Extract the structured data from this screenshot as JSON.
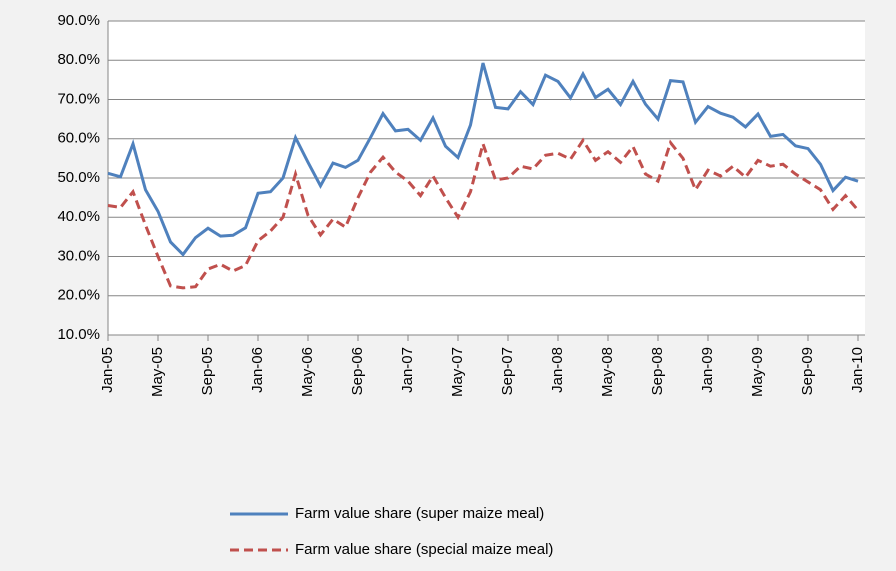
{
  "chart_data": {
    "type": "line",
    "categories": [
      "Jan-05",
      null,
      null,
      null,
      "May-05",
      null,
      null,
      null,
      "Sep-05",
      null,
      null,
      null,
      "Jan-06",
      null,
      null,
      null,
      "May-06",
      null,
      null,
      null,
      "Sep-06",
      null,
      null,
      null,
      "Jan-07",
      null,
      null,
      null,
      "May-07",
      null,
      null,
      null,
      "Sep-07",
      null,
      null,
      null,
      "Jan-08",
      null,
      null,
      null,
      "May-08",
      null,
      null,
      null,
      "Sep-08",
      null,
      null,
      null,
      "Jan-09",
      null,
      null,
      null,
      "May-09",
      null,
      null,
      null,
      "Sep-09",
      null,
      null,
      null,
      "Jan-10"
    ],
    "series": [
      {
        "name": "Farm value share (super maize meal)",
        "color": "#4f81bd",
        "line_style": "solid",
        "values": [
          51.2,
          50.3,
          58.7,
          47,
          41.5,
          33.7,
          30.5,
          34.8,
          37.2,
          35.2,
          35.4,
          37.3,
          46.1,
          46.5,
          50,
          60.3,
          54,
          48,
          53.8,
          52.7,
          54.5,
          60.3,
          66.4,
          62,
          62.4,
          59.6,
          65.3,
          58.1,
          55.2,
          63.5,
          79.3,
          68,
          67.6,
          72,
          68.7,
          76.2,
          74.6,
          70.4,
          76.5,
          70.5,
          72.6,
          68.7,
          74.6,
          68.8,
          65,
          74.8,
          74.5,
          64.2,
          68.2,
          66.5,
          65.5,
          63,
          66.3,
          60.6,
          61.1,
          58.2,
          57.5,
          53.5,
          46.8,
          50.2,
          49.2
        ]
      },
      {
        "name": "Farm value share (special maize meal)",
        "color": "#c0504d",
        "line_style": "dashed",
        "values": [
          43,
          42.5,
          46.5,
          38,
          30,
          22.5,
          22,
          22.3,
          26.8,
          28,
          26.3,
          27.7,
          34,
          36.5,
          40,
          51,
          40.5,
          35.5,
          39.5,
          37.5,
          45,
          51.5,
          55.3,
          51.5,
          49.2,
          45.5,
          50.5,
          45,
          40,
          46.5,
          58.7,
          49.5,
          50,
          53,
          52.3,
          55.8,
          56.3,
          54.8,
          59.6,
          54.5,
          56.7,
          54,
          58,
          51,
          49.2,
          59,
          55,
          47,
          52,
          50.5,
          53,
          50.2,
          54.5,
          53,
          53.5,
          51,
          49,
          47,
          42,
          45.5,
          41.8
        ]
      }
    ],
    "ylim": [
      10,
      90
    ],
    "yticks": [
      {
        "value": 10,
        "label": "10.0%"
      },
      {
        "value": 20,
        "label": "20.0%"
      },
      {
        "value": 30,
        "label": "30.0%"
      },
      {
        "value": 40,
        "label": "40.0%"
      },
      {
        "value": 50,
        "label": "50.0%"
      },
      {
        "value": 60,
        "label": "60.0%"
      },
      {
        "value": 70,
        "label": "70.0%"
      },
      {
        "value": 80,
        "label": "80.0%"
      },
      {
        "value": 90,
        "label": "90.0%"
      }
    ],
    "grid": true,
    "legend": "bottom"
  }
}
